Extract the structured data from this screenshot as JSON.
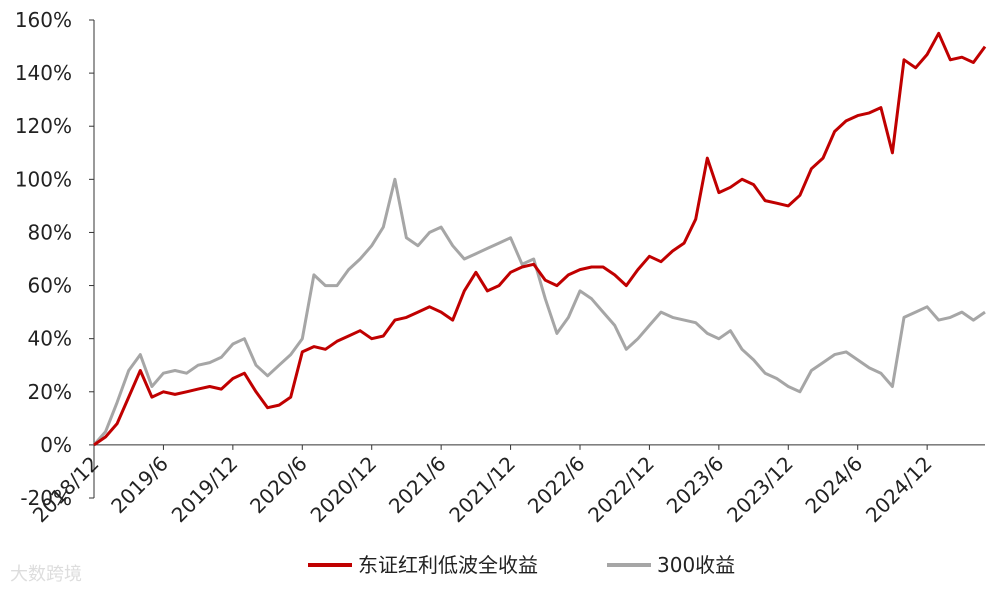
{
  "chart_data": {
    "type": "line",
    "title": "",
    "xlabel": "",
    "ylabel": "",
    "ylim": [
      -0.2,
      1.6
    ],
    "y_ticks": [
      "-20%",
      "0%",
      "20%",
      "40%",
      "60%",
      "80%",
      "100%",
      "120%",
      "140%",
      "160%"
    ],
    "x_ticks": [
      "2018/12",
      "2019/6",
      "2019/12",
      "2020/6",
      "2020/12",
      "2021/6",
      "2021/12",
      "2022/6",
      "2022/12",
      "2023/6",
      "2023/12",
      "2024/6",
      "2024/12"
    ],
    "grid": false,
    "legend_position": "bottom",
    "series": [
      {
        "name": "东证红利低波全收益",
        "color": "#C00000",
        "points": [
          [
            "2018/12",
            0.0
          ],
          [
            "2019/1",
            0.03
          ],
          [
            "2019/2",
            0.08
          ],
          [
            "2019/3",
            0.18
          ],
          [
            "2019/4",
            0.28
          ],
          [
            "2019/5",
            0.18
          ],
          [
            "2019/6",
            0.2
          ],
          [
            "2019/7",
            0.19
          ],
          [
            "2019/8",
            0.2
          ],
          [
            "2019/9",
            0.21
          ],
          [
            "2019/10",
            0.22
          ],
          [
            "2019/11",
            0.21
          ],
          [
            "2019/12",
            0.25
          ],
          [
            "2020/1",
            0.27
          ],
          [
            "2020/2",
            0.2
          ],
          [
            "2020/3",
            0.14
          ],
          [
            "2020/4",
            0.15
          ],
          [
            "2020/5",
            0.18
          ],
          [
            "2020/6",
            0.35
          ],
          [
            "2020/7",
            0.37
          ],
          [
            "2020/8",
            0.36
          ],
          [
            "2020/9",
            0.39
          ],
          [
            "2020/10",
            0.41
          ],
          [
            "2020/11",
            0.43
          ],
          [
            "2020/12",
            0.4
          ],
          [
            "2021/1",
            0.41
          ],
          [
            "2021/2",
            0.47
          ],
          [
            "2021/3",
            0.48
          ],
          [
            "2021/4",
            0.5
          ],
          [
            "2021/5",
            0.52
          ],
          [
            "2021/6",
            0.5
          ],
          [
            "2021/7",
            0.47
          ],
          [
            "2021/8",
            0.58
          ],
          [
            "2021/9",
            0.65
          ],
          [
            "2021/10",
            0.58
          ],
          [
            "2021/11",
            0.6
          ],
          [
            "2021/12",
            0.65
          ],
          [
            "2022/1",
            0.67
          ],
          [
            "2022/2",
            0.68
          ],
          [
            "2022/3",
            0.62
          ],
          [
            "2022/4",
            0.6
          ],
          [
            "2022/5",
            0.64
          ],
          [
            "2022/6",
            0.66
          ],
          [
            "2022/7",
            0.67
          ],
          [
            "2022/8",
            0.67
          ],
          [
            "2022/9",
            0.64
          ],
          [
            "2022/10",
            0.6
          ],
          [
            "2022/11",
            0.66
          ],
          [
            "2022/12",
            0.71
          ],
          [
            "2023/1",
            0.69
          ],
          [
            "2023/2",
            0.73
          ],
          [
            "2023/3",
            0.76
          ],
          [
            "2023/4",
            0.85
          ],
          [
            "2023/5",
            1.08
          ],
          [
            "2023/6",
            0.95
          ],
          [
            "2023/7",
            0.97
          ],
          [
            "2023/8",
            1.0
          ],
          [
            "2023/9",
            0.98
          ],
          [
            "2023/10",
            0.92
          ],
          [
            "2023/11",
            0.91
          ],
          [
            "2023/12",
            0.9
          ],
          [
            "2024/1",
            0.94
          ],
          [
            "2024/2",
            1.04
          ],
          [
            "2024/3",
            1.08
          ],
          [
            "2024/4",
            1.18
          ],
          [
            "2024/5",
            1.22
          ],
          [
            "2024/6",
            1.24
          ],
          [
            "2024/7",
            1.25
          ],
          [
            "2024/8",
            1.27
          ],
          [
            "2024/9",
            1.1
          ],
          [
            "2024/10",
            1.45
          ],
          [
            "2024/11",
            1.42
          ],
          [
            "2024/12",
            1.47
          ],
          [
            "2025/1",
            1.55
          ],
          [
            "2025/2",
            1.45
          ],
          [
            "2025/3",
            1.46
          ],
          [
            "2025/4",
            1.44
          ],
          [
            "2025/5",
            1.5
          ]
        ]
      },
      {
        "name": "300收益",
        "color": "#A6A6A6",
        "points": [
          [
            "2018/12",
            0.0
          ],
          [
            "2019/1",
            0.05
          ],
          [
            "2019/2",
            0.16
          ],
          [
            "2019/3",
            0.28
          ],
          [
            "2019/4",
            0.34
          ],
          [
            "2019/5",
            0.22
          ],
          [
            "2019/6",
            0.27
          ],
          [
            "2019/7",
            0.28
          ],
          [
            "2019/8",
            0.27
          ],
          [
            "2019/9",
            0.3
          ],
          [
            "2019/10",
            0.31
          ],
          [
            "2019/11",
            0.33
          ],
          [
            "2019/12",
            0.38
          ],
          [
            "2020/1",
            0.4
          ],
          [
            "2020/2",
            0.3
          ],
          [
            "2020/3",
            0.26
          ],
          [
            "2020/4",
            0.3
          ],
          [
            "2020/5",
            0.34
          ],
          [
            "2020/6",
            0.4
          ],
          [
            "2020/7",
            0.64
          ],
          [
            "2020/8",
            0.6
          ],
          [
            "2020/9",
            0.6
          ],
          [
            "2020/10",
            0.66
          ],
          [
            "2020/11",
            0.7
          ],
          [
            "2020/12",
            0.75
          ],
          [
            "2021/1",
            0.82
          ],
          [
            "2021/2",
            1.0
          ],
          [
            "2021/3",
            0.78
          ],
          [
            "2021/4",
            0.75
          ],
          [
            "2021/5",
            0.8
          ],
          [
            "2021/6",
            0.82
          ],
          [
            "2021/7",
            0.75
          ],
          [
            "2021/8",
            0.7
          ],
          [
            "2021/9",
            0.72
          ],
          [
            "2021/10",
            0.74
          ],
          [
            "2021/11",
            0.76
          ],
          [
            "2021/12",
            0.78
          ],
          [
            "2022/1",
            0.68
          ],
          [
            "2022/2",
            0.7
          ],
          [
            "2022/3",
            0.55
          ],
          [
            "2022/4",
            0.42
          ],
          [
            "2022/5",
            0.48
          ],
          [
            "2022/6",
            0.58
          ],
          [
            "2022/7",
            0.55
          ],
          [
            "2022/8",
            0.5
          ],
          [
            "2022/9",
            0.45
          ],
          [
            "2022/10",
            0.36
          ],
          [
            "2022/11",
            0.4
          ],
          [
            "2022/12",
            0.45
          ],
          [
            "2023/1",
            0.5
          ],
          [
            "2023/2",
            0.48
          ],
          [
            "2023/3",
            0.47
          ],
          [
            "2023/4",
            0.46
          ],
          [
            "2023/5",
            0.42
          ],
          [
            "2023/6",
            0.4
          ],
          [
            "2023/7",
            0.43
          ],
          [
            "2023/8",
            0.36
          ],
          [
            "2023/9",
            0.32
          ],
          [
            "2023/10",
            0.27
          ],
          [
            "2023/11",
            0.25
          ],
          [
            "2023/12",
            0.22
          ],
          [
            "2024/1",
            0.2
          ],
          [
            "2024/2",
            0.28
          ],
          [
            "2024/3",
            0.31
          ],
          [
            "2024/4",
            0.34
          ],
          [
            "2024/5",
            0.35
          ],
          [
            "2024/6",
            0.32
          ],
          [
            "2024/7",
            0.29
          ],
          [
            "2024/8",
            0.27
          ],
          [
            "2024/9",
            0.22
          ],
          [
            "2024/10",
            0.48
          ],
          [
            "2024/11",
            0.5
          ],
          [
            "2024/12",
            0.52
          ],
          [
            "2025/1",
            0.47
          ],
          [
            "2025/2",
            0.48
          ],
          [
            "2025/3",
            0.5
          ],
          [
            "2025/4",
            0.47
          ],
          [
            "2025/5",
            0.5
          ]
        ]
      }
    ]
  },
  "watermark": "大数跨境"
}
